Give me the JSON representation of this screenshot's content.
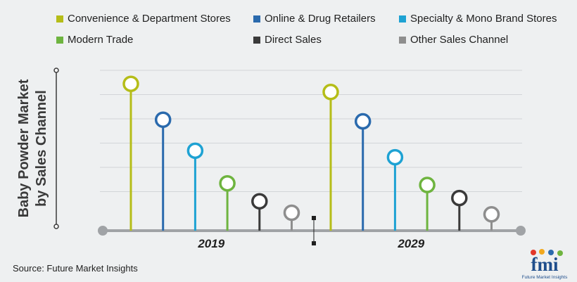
{
  "chart_data": {
    "type": "lollipop",
    "ylabel_lines": [
      "Baby Powder Market",
      "by Sales Channel"
    ],
    "groups": [
      "2019",
      "2029"
    ],
    "series": [
      {
        "name": "Convenience & Department Stores",
        "color": "#b5bd18",
        "values": [
          90,
          85
        ]
      },
      {
        "name": "Online & Drug Retailers",
        "color": "#2a6aad",
        "values": [
          68,
          67
        ]
      },
      {
        "name": "Specialty & Mono Brand Stores",
        "color": "#1ea2d3",
        "values": [
          49,
          45
        ]
      },
      {
        "name": "Modern Trade",
        "color": "#6eb43f",
        "values": [
          29,
          28
        ]
      },
      {
        "name": "Direct Sales",
        "color": "#3a3a3a",
        "values": [
          18,
          20
        ]
      },
      {
        "name": "Other Sales Channel",
        "color": "#8e8e8e",
        "values": [
          11,
          10
        ]
      }
    ],
    "grid": true,
    "legend_position": "top"
  },
  "source": "Source: Future Market Insights",
  "logo": {
    "text": "fmi",
    "tagline": "Future Market Insights"
  }
}
